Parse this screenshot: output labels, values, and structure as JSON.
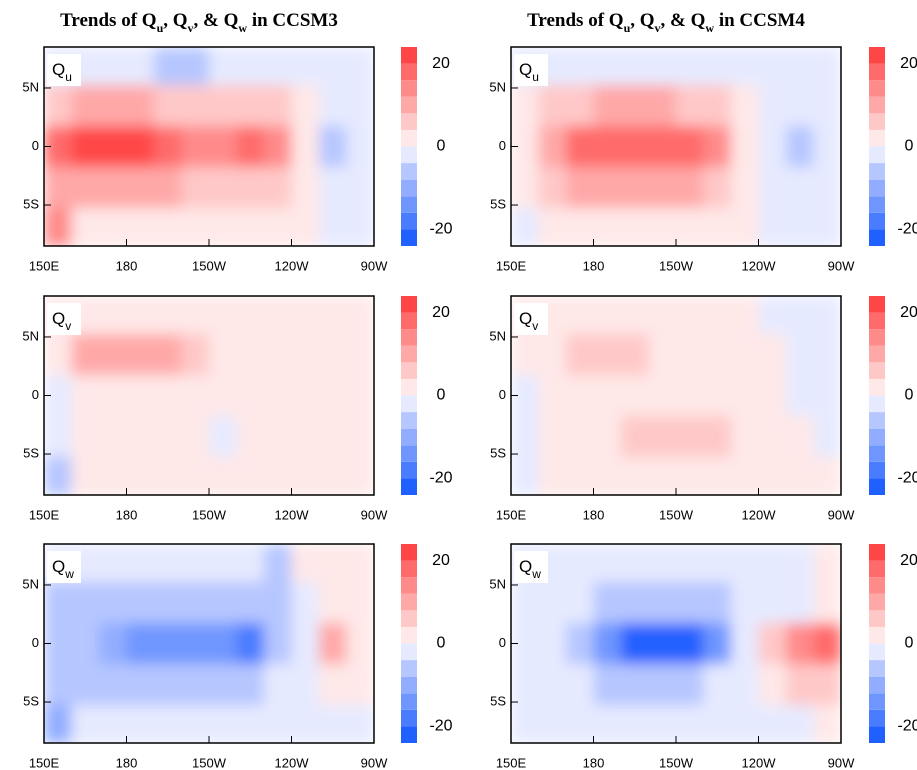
{
  "chart_data": {
    "type": "contour",
    "x": [
      155,
      165,
      175,
      185,
      195,
      205,
      215,
      225,
      235,
      245,
      255,
      265
    ],
    "y": [
      7,
      3.5,
      0,
      -3.5,
      -7
    ],
    "xlim": [
      150,
      270
    ],
    "xticks": [
      {
        "value": 150,
        "label": "150E"
      },
      180,
      {
        "value": 210,
        "label": "150W"
      },
      {
        "value": 240,
        "label": "120W"
      },
      {
        "value": 270,
        "label": "90W"
      }
    ],
    "ylim": [
      -8.5,
      8.5
    ],
    "yticks": [
      {
        "value": 5,
        "label": "5N"
      },
      0,
      {
        "value": -5,
        "label": "5S"
      }
    ],
    "colorbar": {
      "levels": [
        -24,
        -20,
        -16,
        -12,
        -8,
        -4,
        0,
        4,
        8,
        12,
        16,
        20,
        24
      ],
      "colors": [
        "#2060ff",
        "#4a7cff",
        "#6f96ff",
        "#92adff",
        "#b6c6ff",
        "#e6eaff",
        "#ffe8e8",
        "#ffc8c8",
        "#ffa8a8",
        "#ff8a8a",
        "#ff6a6a",
        "#ff4646"
      ],
      "ticks": [
        20,
        0,
        -20
      ]
    },
    "columns": [
      {
        "title": [
          "Trends of Q",
          "u",
          ", Q",
          "v",
          ", & Q",
          "w",
          " in CCSM3"
        ],
        "panels": [
          {
            "label": [
              "Q",
              "u"
            ],
            "values": [
              [
                -1,
                -1,
                -1,
                -3,
                -5,
                -5,
                -3,
                -1,
                -1,
                -1,
                -1,
                -1
              ],
              [
                6,
                8,
                8,
                8,
                7,
                6,
                6,
                6,
                6,
                2,
                -1,
                -1
              ],
              [
                18,
                21,
                22,
                21,
                18,
                14,
                15,
                17,
                12,
                2,
                -6,
                -2
              ],
              [
                10,
                10,
                10,
                9,
                8,
                7,
                7,
                7,
                6,
                2,
                -3,
                -1
              ],
              [
                14,
                3,
                2,
                2,
                2,
                2,
                2,
                2,
                2,
                1,
                -1,
                -1
              ]
            ]
          },
          {
            "label": [
              "Q",
              "v"
            ],
            "values": [
              [
                1,
                2,
                2,
                2,
                2,
                2,
                1,
                1,
                1,
                1,
                2,
                2
              ],
              [
                3,
                9,
                10,
                10,
                8,
                5,
                3,
                2,
                1,
                1,
                1,
                1
              ],
              [
                -1,
                1,
                1,
                1,
                1,
                1,
                1,
                1,
                1,
                1,
                1,
                1
              ],
              [
                -1,
                1,
                2,
                2,
                1,
                1,
                -1,
                1,
                1,
                1,
                1,
                1
              ],
              [
                -8,
                1,
                1,
                1,
                1,
                1,
                1,
                1,
                1,
                1,
                1,
                1
              ]
            ]
          },
          {
            "label": [
              "Q",
              "w"
            ],
            "values": [
              [
                -1,
                -1,
                -1,
                -1,
                -1,
                -1,
                -1,
                -1,
                -5,
                1,
                1,
                1
              ],
              [
                -6,
                -6,
                -5,
                -5,
                -5,
                -5,
                -6,
                -7,
                -5,
                -3,
                3,
                1
              ],
              [
                -6,
                -7,
                -11,
                -14,
                -13,
                -13,
                -15,
                -20,
                -6,
                -1,
                8,
                2
              ],
              [
                -5,
                -5,
                -6,
                -6,
                -6,
                -6,
                -6,
                -6,
                -4,
                -1,
                2,
                1
              ],
              [
                -10,
                -1,
                -1,
                -1,
                -1,
                -1,
                -1,
                -1,
                -1,
                -1,
                -1,
                -1
              ]
            ]
          }
        ]
      },
      {
        "title": [
          "Trends of Q",
          "u",
          ", Q",
          "v",
          ", & Q",
          "w",
          " in CCSM4"
        ],
        "panels": [
          {
            "label": [
              "Q",
              "u"
            ],
            "values": [
              [
                -1,
                -1,
                -1,
                -1,
                -1,
                -3,
                -3,
                -1,
                -1,
                -1,
                -1,
                -1
              ],
              [
                2,
                5,
                7,
                8,
                8,
                8,
                7,
                6,
                2,
                -1,
                -1,
                -1
              ],
              [
                3,
                9,
                16,
                17,
                17,
                17,
                16,
                14,
                2,
                -2,
                -5,
                -1
              ],
              [
                1,
                6,
                9,
                10,
                10,
                9,
                9,
                7,
                2,
                -1,
                -2,
                -1
              ],
              [
                -1,
                1,
                2,
                2,
                2,
                2,
                2,
                1,
                1,
                -1,
                -1,
                -1
              ]
            ]
          },
          {
            "label": [
              "Q",
              "v"
            ],
            "values": [
              [
                1,
                1,
                1,
                2,
                2,
                2,
                2,
                2,
                1,
                -1,
                -1,
                -2
              ],
              [
                1,
                2,
                6,
                6,
                5,
                3,
                2,
                2,
                2,
                1,
                -1,
                -2
              ],
              [
                -1,
                1,
                1,
                1,
                2,
                3,
                3,
                2,
                1,
                1,
                -1,
                -1
              ],
              [
                -1,
                1,
                2,
                3,
                5,
                6,
                6,
                5,
                3,
                2,
                1,
                -1
              ],
              [
                -2,
                1,
                1,
                1,
                1,
                2,
                2,
                2,
                1,
                1,
                1,
                1
              ]
            ]
          },
          {
            "label": [
              "Q",
              "w"
            ],
            "values": [
              [
                -1,
                -1,
                -1,
                -1,
                -1,
                -1,
                -1,
                -1,
                -1,
                -2,
                -4,
                1
              ],
              [
                -1,
                -2,
                -4,
                -6,
                -7,
                -7,
                -7,
                -6,
                -3,
                -1,
                -2,
                1
              ],
              [
                -1,
                -3,
                -8,
                -13,
                -22,
                -22,
                -22,
                -14,
                -3,
                6,
                12,
                16
              ],
              [
                -1,
                -2,
                -4,
                -5,
                -6,
                -6,
                -5,
                -4,
                -2,
                2,
                4,
                6
              ],
              [
                -2,
                -1,
                -1,
                -1,
                -1,
                -1,
                -1,
                -1,
                -1,
                -1,
                -1,
                1
              ]
            ]
          }
        ]
      }
    ]
  }
}
